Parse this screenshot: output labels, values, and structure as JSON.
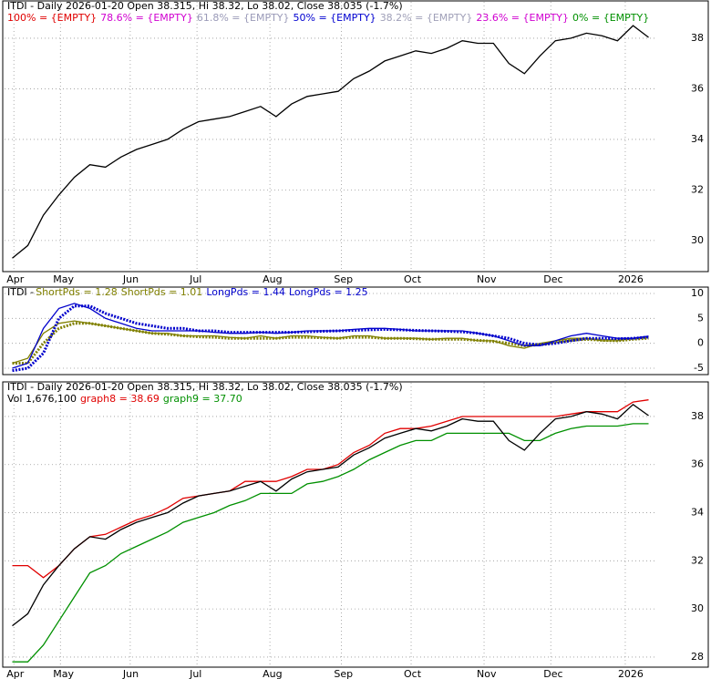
{
  "chart_data": [
    {
      "type": "line",
      "title": "ITDI - Daily 2026-01-20 Open 38.315, Hi 38.32, Lo 38.02, Close 38.035 (-1.7%)",
      "fib_levels": [
        {
          "label": "100% = {EMPTY}",
          "color": "#e00000"
        },
        {
          "label": "78.6% = {EMPTY}",
          "color": "#d000d0"
        },
        {
          "label": "61.8% = {EMPTY}",
          "color": "#9a9ab8"
        },
        {
          "label": "50% = {EMPTY}",
          "color": "#0000d0"
        },
        {
          "label": "38.2% = {EMPTY}",
          "color": "#a0a0b8"
        },
        {
          "label": "23.6% = {EMPTY}",
          "color": "#d000d0"
        },
        {
          "label": "0% = {EMPTY}",
          "color": "#009000"
        }
      ],
      "values": [
        29.3,
        29.8,
        31.0,
        31.8,
        32.5,
        33.0,
        32.9,
        33.3,
        33.6,
        33.8,
        34.0,
        34.4,
        34.7,
        34.8,
        34.9,
        35.1,
        35.3,
        34.9,
        35.4,
        35.7,
        35.8,
        35.9,
        36.4,
        36.7,
        37.1,
        37.3,
        37.5,
        37.4,
        37.6,
        37.9,
        37.8,
        37.8,
        37.0,
        36.6,
        37.3,
        37.9,
        38.0,
        38.2,
        38.1,
        37.9,
        38.5,
        38.035
      ],
      "color": "#000000",
      "xlim": [
        0,
        42
      ],
      "xticks": [
        {
          "value": 0.6,
          "label": "Apr"
        },
        {
          "value": 3.6,
          "label": "May"
        },
        {
          "value": 8.1,
          "label": "Jun"
        },
        {
          "value": 12.4,
          "label": "Jul"
        },
        {
          "value": 17.1,
          "label": "Aug"
        },
        {
          "value": 21.7,
          "label": "Sep"
        },
        {
          "value": 26.2,
          "label": "Oct"
        },
        {
          "value": 30.9,
          "label": "Nov"
        },
        {
          "value": 35.2,
          "label": "Dec"
        },
        {
          "value": 40,
          "label": "2026"
        }
      ],
      "ylim": [
        28.77,
        39.44
      ],
      "yticks": [
        30,
        32,
        34,
        36,
        38
      ],
      "grid": true
    },
    {
      "type": "line",
      "title": "ITDI - ",
      "series": [
        {
          "name": "ShortPds = 1.28",
          "color": "#808000",
          "line_style": "solid",
          "values": [
            -4,
            -3,
            2,
            4,
            4.5,
            4,
            3.5,
            3,
            2.5,
            2,
            2,
            1.5,
            1.5,
            1.5,
            1.2,
            1,
            1.5,
            1,
            1.5,
            1.5,
            1.2,
            1,
            1.5,
            1.5,
            1,
            1,
            1,
            0.8,
            1,
            1,
            0.5,
            0.5,
            -0.5,
            -1,
            0,
            0.5,
            1,
            1,
            0.5,
            0.5,
            1,
            1.28
          ]
        },
        {
          "name": "ShortPds = 1.01",
          "color": "#808000",
          "line_style": "dotted",
          "values": [
            -4,
            -4,
            0,
            3,
            4,
            4,
            3.5,
            3,
            2.5,
            2,
            1.8,
            1.5,
            1.3,
            1.2,
            1,
            1,
            1,
            1,
            1.2,
            1.2,
            1.1,
            1,
            1.2,
            1.2,
            1,
            1,
            0.9,
            0.8,
            0.8,
            0.8,
            0.6,
            0.4,
            0,
            -0.5,
            -0.3,
            0.3,
            0.6,
            0.8,
            0.6,
            0.5,
            0.8,
            1.01
          ]
        },
        {
          "name": "LongPds = 1.44",
          "color": "#0000cc",
          "line_style": "solid",
          "values": [
            -5,
            -4,
            3,
            7,
            8,
            7,
            5,
            4,
            3,
            2.5,
            2.5,
            2.5,
            2.5,
            2.2,
            2,
            2,
            2.2,
            2,
            2.2,
            2.5,
            2.5,
            2.5,
            2.8,
            3,
            3,
            2.8,
            2.5,
            2.5,
            2.5,
            2.5,
            2,
            1.5,
            0.5,
            -0.5,
            -0.5,
            0.5,
            1.5,
            2,
            1.5,
            1,
            1,
            1.44
          ]
        },
        {
          "name": "LongPds = 1.25",
          "color": "#0000cc",
          "line_style": "dotted",
          "values": [
            -5.5,
            -5,
            -2,
            5,
            7.5,
            7.5,
            6,
            5,
            4,
            3.5,
            3,
            3,
            2.5,
            2.5,
            2.2,
            2.2,
            2.2,
            2.2,
            2.2,
            2.3,
            2.4,
            2.5,
            2.6,
            2.7,
            2.8,
            2.7,
            2.6,
            2.5,
            2.4,
            2.3,
            2.0,
            1.5,
            1,
            0,
            -0.3,
            0,
            0.5,
            1,
            1,
            0.9,
            1,
            1.25
          ]
        }
      ],
      "xlim": [
        0,
        42
      ],
      "ylim": [
        -6.1,
        11.1
      ],
      "yticks": [
        -5,
        0,
        5,
        10
      ],
      "grid": true
    },
    {
      "type": "line",
      "title": "ITDI - Daily 2026-01-20 Open 38.315, Hi 38.32, Lo 38.02, Close 38.035 (-1.7%)",
      "annotation": "Vol 1,676,100",
      "values": [
        29.3,
        29.8,
        31.0,
        31.8,
        32.5,
        33.0,
        32.9,
        33.3,
        33.6,
        33.8,
        34.0,
        34.4,
        34.7,
        34.8,
        34.9,
        35.1,
        35.3,
        34.9,
        35.4,
        35.7,
        35.8,
        35.9,
        36.4,
        36.7,
        37.1,
        37.3,
        37.5,
        37.4,
        37.6,
        37.9,
        37.8,
        37.8,
        37.0,
        36.6,
        37.3,
        37.9,
        38.0,
        38.2,
        38.1,
        37.9,
        38.5,
        38.035
      ],
      "color": "#000000",
      "series": [
        {
          "name": "graph8 = 38.69",
          "color": "#e00000",
          "line_style": "solid",
          "values": [
            31.8,
            31.8,
            31.3,
            31.8,
            32.5,
            33.0,
            33.1,
            33.4,
            33.7,
            33.9,
            34.2,
            34.6,
            34.7,
            34.8,
            34.9,
            35.3,
            35.3,
            35.3,
            35.5,
            35.8,
            35.8,
            36.0,
            36.5,
            36.8,
            37.3,
            37.5,
            37.5,
            37.6,
            37.8,
            38.0,
            38.0,
            38.0,
            38.0,
            38.0,
            38.0,
            38.0,
            38.1,
            38.2,
            38.2,
            38.2,
            38.6,
            38.69
          ]
        },
        {
          "name": "graph9 = 37.70",
          "color": "#009000",
          "line_style": "solid",
          "values": [
            27.8,
            27.8,
            28.5,
            29.5,
            30.5,
            31.5,
            31.8,
            32.3,
            32.6,
            32.9,
            33.2,
            33.6,
            33.8,
            34.0,
            34.3,
            34.5,
            34.8,
            34.8,
            34.8,
            35.2,
            35.3,
            35.5,
            35.8,
            36.2,
            36.5,
            36.8,
            37.0,
            37.0,
            37.3,
            37.3,
            37.3,
            37.3,
            37.3,
            37.0,
            37.0,
            37.3,
            37.5,
            37.6,
            37.6,
            37.6,
            37.7,
            37.7
          ]
        }
      ],
      "xlim": [
        0,
        42
      ],
      "xticks": [
        {
          "value": 0.6,
          "label": "Apr"
        },
        {
          "value": 3.6,
          "label": "May"
        },
        {
          "value": 8.1,
          "label": "Jun"
        },
        {
          "value": 12.4,
          "label": "Jul"
        },
        {
          "value": 17.1,
          "label": "Aug"
        },
        {
          "value": 21.7,
          "label": "Sep"
        },
        {
          "value": 26.2,
          "label": "Oct"
        },
        {
          "value": 30.9,
          "label": "Nov"
        },
        {
          "value": 35.2,
          "label": "Dec"
        },
        {
          "value": 40,
          "label": "2026"
        }
      ],
      "ylim": [
        27.58,
        39.4
      ],
      "yticks": [
        28,
        30,
        32,
        34,
        36,
        38
      ],
      "grid": true
    }
  ]
}
